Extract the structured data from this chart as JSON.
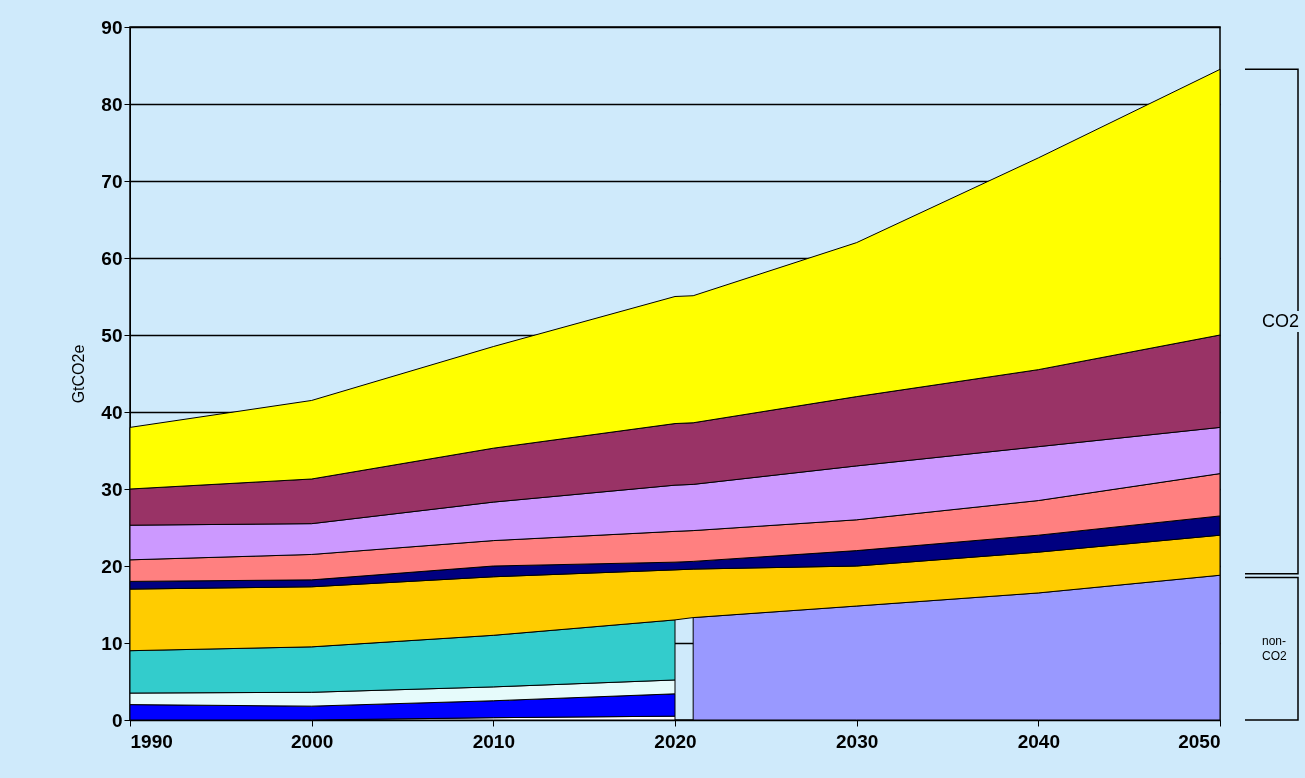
{
  "chart_data": {
    "type": "area",
    "stacked": true,
    "ylabel": "GtCO2e",
    "x": [
      1990,
      2000,
      2010,
      2020,
      2021,
      2030,
      2040,
      2050
    ],
    "series": [
      {
        "color": "#ffffff",
        "values": [
          0,
          0,
          0.3,
          0.5,
          null,
          null,
          null,
          null
        ]
      },
      {
        "color": "#0000ff",
        "values": [
          2.0,
          1.8,
          2.2,
          2.9,
          null,
          null,
          null,
          null
        ]
      },
      {
        "color": "#e6fbfb",
        "values": [
          1.5,
          1.8,
          1.8,
          1.8,
          null,
          null,
          null,
          null
        ]
      },
      {
        "color": "#33cccc",
        "values": [
          5.5,
          5.9,
          6.7,
          7.8,
          null,
          null,
          null,
          null
        ]
      },
      {
        "color": "#9999ff",
        "values": [
          null,
          null,
          null,
          null,
          13.3,
          14.8,
          16.5,
          18.8
        ]
      },
      {
        "color": "#ffcc00",
        "values": [
          8,
          7.8,
          7.6,
          6.5,
          6.3,
          5.2,
          5.3,
          5.2
        ]
      },
      {
        "color": "#000080",
        "values": [
          1.0,
          0.9,
          1.4,
          1.0,
          1.0,
          2.0,
          2.2,
          2.5
        ]
      },
      {
        "color": "#ff8080",
        "values": [
          2.8,
          3.3,
          3.3,
          4.0,
          4.0,
          4.0,
          4.5,
          5.5
        ]
      },
      {
        "color": "#cc99ff",
        "values": [
          4.5,
          4.0,
          5.0,
          6.0,
          6.0,
          7.0,
          7.0,
          6.0
        ]
      },
      {
        "color": "#993366",
        "values": [
          4.7,
          5.8,
          7.0,
          8.0,
          8.0,
          9.0,
          10.0,
          12.0
        ]
      },
      {
        "color": "#ffff00",
        "values": [
          8.0,
          10.2,
          13.2,
          16.5,
          16.5,
          20.0,
          27.5,
          34.5
        ]
      }
    ],
    "xlim": [
      1990,
      2050
    ],
    "xticks": [
      1990,
      2000,
      2010,
      2020,
      2030,
      2040,
      2050
    ],
    "ylim": [
      0,
      90
    ],
    "yticks": [
      0,
      10,
      20,
      30,
      40,
      50,
      60,
      70,
      80,
      90
    ],
    "grid": "y",
    "annotations": [
      "CO2",
      "non-CO2"
    ]
  }
}
